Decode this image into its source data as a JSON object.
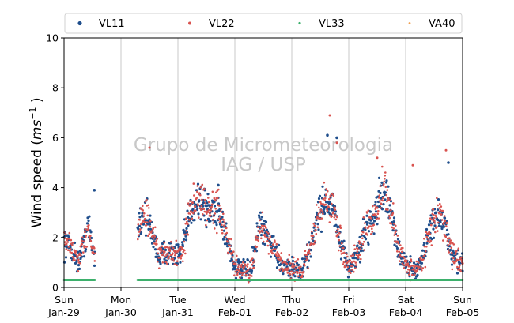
{
  "chart_data": {
    "type": "scatter",
    "ylabel_main": "Wind speed (",
    "ylabel_unit": "ms",
    "ylabel_exp": "−1",
    "ylabel_close": " )",
    "ylim": [
      0,
      10
    ],
    "yticks": [
      0,
      2,
      4,
      6,
      8,
      10
    ],
    "xlim": [
      "2023-01-29 00:00",
      "2023-02-05 00:00"
    ],
    "xticks": [
      {
        "line1": "Sun",
        "line2": "Jan-29"
      },
      {
        "line1": "Mon",
        "line2": "Jan-30"
      },
      {
        "line1": "Tue",
        "line2": "Jan-31"
      },
      {
        "line1": "Wed",
        "line2": "Feb-01"
      },
      {
        "line1": "Thu",
        "line2": "Feb-02"
      },
      {
        "line1": "Fri",
        "line2": "Feb-03"
      },
      {
        "line1": "Sat",
        "line2": "Feb-04"
      },
      {
        "line1": "Sun",
        "line2": "Feb-05"
      }
    ],
    "grid": "vertical",
    "legend_placement": "top",
    "watermark": [
      "Grupo de Micrometeorologia",
      "IAG / USP"
    ],
    "series": [
      {
        "name": "VL11",
        "color": "#1f4e8c",
        "segments": [
          {
            "start": "2023-01-29 00:00",
            "end": "2023-01-29 13:00"
          },
          {
            "start": "2023-01-30 07:00",
            "end": "2023-02-05 00:00"
          }
        ],
        "hourly_profile": [
          {
            "x": "2023-01-29 00:00",
            "y": 1.8
          },
          {
            "x": "2023-01-29 03:00",
            "y": 1.6
          },
          {
            "x": "2023-01-29 06:00",
            "y": 1.0
          },
          {
            "x": "2023-01-29 08:00",
            "y": 1.6
          },
          {
            "x": "2023-01-29 10:00",
            "y": 2.5
          },
          {
            "x": "2023-01-29 12:00",
            "y": 1.6
          },
          {
            "x": "2023-01-29 13:00",
            "y": 1.2
          },
          {
            "x": "2023-01-30 07:00",
            "y": 2.5
          },
          {
            "x": "2023-01-30 10:00",
            "y": 3.0
          },
          {
            "x": "2023-01-30 13:00",
            "y": 2.2
          },
          {
            "x": "2023-01-30 16:00",
            "y": 1.2
          },
          {
            "x": "2023-01-30 20:00",
            "y": 1.5
          },
          {
            "x": "2023-01-31 01:00",
            "y": 1.2
          },
          {
            "x": "2023-01-31 06:00",
            "y": 3.3
          },
          {
            "x": "2023-01-31 09:00",
            "y": 3.6
          },
          {
            "x": "2023-01-31 13:00",
            "y": 3.0
          },
          {
            "x": "2023-01-31 17:00",
            "y": 3.2
          },
          {
            "x": "2023-01-31 21:00",
            "y": 1.8
          },
          {
            "x": "2023-02-01 00:00",
            "y": 0.8
          },
          {
            "x": "2023-02-01 06:00",
            "y": 0.6
          },
          {
            "x": "2023-02-01 08:00",
            "y": 1.2
          },
          {
            "x": "2023-02-01 10:00",
            "y": 2.4
          },
          {
            "x": "2023-02-01 13:00",
            "y": 2.2
          },
          {
            "x": "2023-02-01 16:00",
            "y": 1.7
          },
          {
            "x": "2023-02-01 19:00",
            "y": 1.0
          },
          {
            "x": "2023-02-02 00:00",
            "y": 0.8
          },
          {
            "x": "2023-02-02 04:00",
            "y": 0.6
          },
          {
            "x": "2023-02-02 08:00",
            "y": 1.6
          },
          {
            "x": "2023-02-02 10:00",
            "y": 2.6
          },
          {
            "x": "2023-02-02 14:00",
            "y": 3.5
          },
          {
            "x": "2023-02-02 18:00",
            "y": 3.0
          },
          {
            "x": "2023-02-02 21:00",
            "y": 1.5
          },
          {
            "x": "2023-02-03 00:00",
            "y": 0.8
          },
          {
            "x": "2023-02-03 04:00",
            "y": 1.4
          },
          {
            "x": "2023-02-03 07:00",
            "y": 2.3
          },
          {
            "x": "2023-02-03 11:00",
            "y": 3.0
          },
          {
            "x": "2023-02-03 15:00",
            "y": 4.0
          },
          {
            "x": "2023-02-03 18:00",
            "y": 2.8
          },
          {
            "x": "2023-02-03 21:00",
            "y": 1.5
          },
          {
            "x": "2023-02-04 01:00",
            "y": 0.8
          },
          {
            "x": "2023-02-04 05:00",
            "y": 0.7
          },
          {
            "x": "2023-02-04 08:00",
            "y": 1.5
          },
          {
            "x": "2023-02-04 11:00",
            "y": 2.6
          },
          {
            "x": "2023-02-04 14:00",
            "y": 3.0
          },
          {
            "x": "2023-02-04 17:00",
            "y": 2.2
          },
          {
            "x": "2023-02-04 20:00",
            "y": 1.2
          },
          {
            "x": "2023-02-05 00:00",
            "y": 1.0
          }
        ],
        "outliers": [
          {
            "x": "2023-01-29 12:45",
            "y": 3.9
          },
          {
            "x": "2023-01-31 17:00",
            "y": 4.1
          },
          {
            "x": "2023-02-02 15:00",
            "y": 6.1
          },
          {
            "x": "2023-02-02 19:00",
            "y": 6.0
          },
          {
            "x": "2023-02-04 18:00",
            "y": 5.0
          }
        ]
      },
      {
        "name": "VL22",
        "color": "#d9534f",
        "segments": [
          {
            "start": "2023-01-29 00:00",
            "end": "2023-01-29 13:00"
          },
          {
            "start": "2023-01-30 07:00",
            "end": "2023-02-05 00:00"
          }
        ],
        "outliers": [
          {
            "x": "2023-01-30 12:00",
            "y": 5.6
          },
          {
            "x": "2023-02-02 16:00",
            "y": 6.9
          },
          {
            "x": "2023-02-02 19:00",
            "y": 5.8
          },
          {
            "x": "2023-02-04 17:00",
            "y": 5.5
          },
          {
            "x": "2023-02-04 03:00",
            "y": 4.9
          },
          {
            "x": "2023-02-03 12:00",
            "y": 5.2
          }
        ]
      },
      {
        "name": "VL33",
        "color": "#3aaf6a",
        "segments": [
          {
            "start": "2023-01-29 00:00",
            "end": "2023-01-29 13:00",
            "y": 0.3
          },
          {
            "start": "2023-01-30 07:00",
            "end": "2023-02-05 00:00",
            "y": 0.3
          }
        ]
      },
      {
        "name": "VA40",
        "color": "#f0a050",
        "segments": []
      }
    ]
  }
}
